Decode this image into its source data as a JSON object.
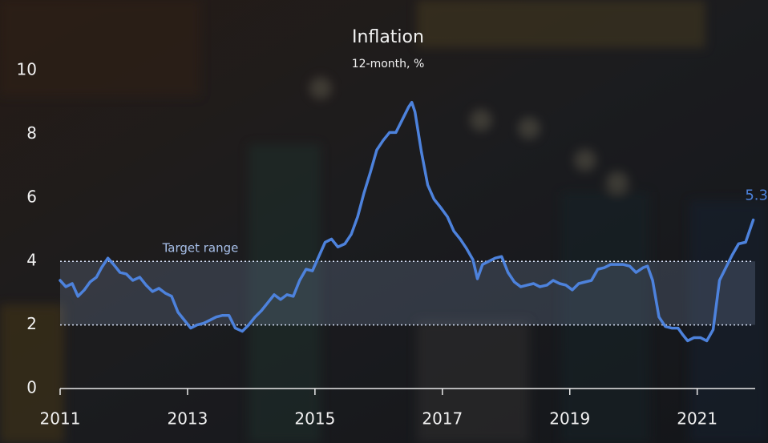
{
  "chart_data": {
    "type": "line",
    "title": "Inflation",
    "subtitle": "12-month, %",
    "color": "#4d82dc",
    "x": [
      2011.0,
      2011.09,
      2011.19,
      2011.28,
      2011.38,
      2011.47,
      2011.57,
      2011.65,
      2011.75,
      2011.84,
      2011.94,
      2012.04,
      2012.14,
      2012.25,
      2012.35,
      2012.45,
      2012.55,
      2012.65,
      2012.75,
      2012.85,
      2012.95,
      2013.05,
      2013.15,
      2013.25,
      2013.35,
      2013.45,
      2013.55,
      2013.65,
      2013.75,
      2013.86,
      2013.96,
      2014.06,
      2014.16,
      2014.26,
      2014.36,
      2014.46,
      2014.56,
      2014.66,
      2014.76,
      2014.86,
      2014.96,
      2015.06,
      2015.16,
      2015.26,
      2015.36,
      2015.47,
      2015.57,
      2015.67,
      2015.77,
      2015.87,
      2015.97,
      2016.07,
      2016.17,
      2016.27,
      2016.37,
      2016.47,
      2016.52,
      2016.57,
      2016.67,
      2016.77,
      2016.87,
      2016.97,
      2017.08,
      2017.18,
      2017.28,
      2017.38,
      2017.48,
      2017.55,
      2017.63,
      2017.73,
      2017.83,
      2017.93,
      2018.03,
      2018.13,
      2018.23,
      2018.33,
      2018.43,
      2018.53,
      2018.64,
      2018.74,
      2018.84,
      2018.94,
      2019.04,
      2019.14,
      2019.24,
      2019.34,
      2019.44,
      2019.54,
      2019.64,
      2019.74,
      2019.84,
      2019.94,
      2020.04,
      2020.15,
      2020.22,
      2020.3,
      2020.4,
      2020.5,
      2020.6,
      2020.7,
      2020.77,
      2020.85,
      2020.95,
      2021.05,
      2021.15,
      2021.25,
      2021.35,
      2021.45,
      2021.55,
      2021.65,
      2021.76,
      2021.88
    ],
    "values": [
      3.4,
      3.2,
      3.3,
      2.9,
      3.1,
      3.35,
      3.5,
      3.8,
      4.1,
      3.9,
      3.65,
      3.6,
      3.4,
      3.5,
      3.25,
      3.05,
      3.15,
      3.0,
      2.9,
      2.4,
      2.15,
      1.9,
      2.0,
      2.05,
      2.15,
      2.25,
      2.3,
      2.3,
      1.9,
      1.8,
      2.0,
      2.25,
      2.45,
      2.7,
      2.95,
      2.8,
      2.95,
      2.9,
      3.4,
      3.75,
      3.7,
      4.15,
      4.6,
      4.7,
      4.45,
      4.55,
      4.85,
      5.4,
      6.15,
      6.8,
      7.5,
      7.8,
      8.05,
      8.05,
      8.45,
      8.85,
      9.0,
      8.7,
      7.45,
      6.4,
      5.95,
      5.7,
      5.4,
      4.95,
      4.7,
      4.4,
      4.05,
      3.45,
      3.9,
      4.0,
      4.1,
      4.15,
      3.65,
      3.35,
      3.2,
      3.25,
      3.3,
      3.2,
      3.25,
      3.4,
      3.3,
      3.25,
      3.1,
      3.3,
      3.35,
      3.4,
      3.75,
      3.8,
      3.9,
      3.9,
      3.9,
      3.85,
      3.65,
      3.8,
      3.85,
      3.4,
      2.25,
      1.95,
      1.9,
      1.9,
      1.7,
      1.5,
      1.6,
      1.6,
      1.5,
      1.85,
      3.4,
      3.8,
      4.2,
      4.55,
      4.6,
      5.3
    ],
    "xlim": [
      2011,
      2021.91
    ],
    "ylim": [
      0,
      10
    ],
    "xticks": [
      2011,
      2013,
      2015,
      2017,
      2019,
      2021
    ],
    "yticks": [
      0,
      2,
      4,
      6,
      8,
      10
    ],
    "target_range": [
      2,
      4
    ],
    "target_label": "Target range"
  }
}
